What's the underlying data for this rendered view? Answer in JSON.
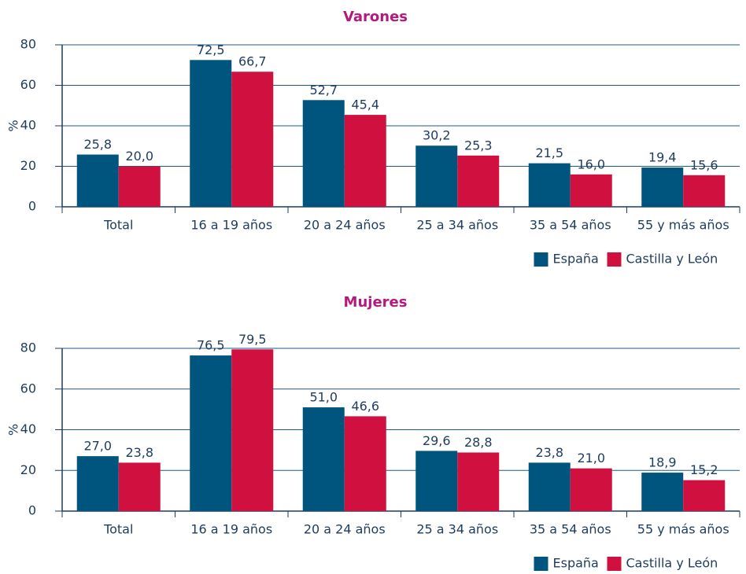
{
  "chart_data": [
    {
      "type": "bar",
      "title": "Varones",
      "ylabel": "%",
      "categories": [
        "Total",
        "16 a 19 años",
        "20 a 24 años",
        "25 a 34 años",
        "35 a 54 años",
        "55 y más años"
      ],
      "series": [
        {
          "name": "España",
          "color": "#00557f",
          "values": [
            25.8,
            72.5,
            52.7,
            30.2,
            21.5,
            19.4
          ],
          "value_labels": [
            "25,8",
            "72,5",
            "52,7",
            "30,2",
            "21,5",
            "19,4"
          ]
        },
        {
          "name": "Castilla y León",
          "color": "#d0103f",
          "values": [
            20.0,
            66.7,
            45.4,
            25.3,
            16.0,
            15.6
          ],
          "value_labels": [
            "20,0",
            "66,7",
            "45,4",
            "25,3",
            "16,0",
            "15,6"
          ]
        }
      ],
      "ylim": [
        0,
        80
      ],
      "yticks": [
        0,
        20,
        40,
        60,
        80
      ],
      "grid": true,
      "legend": "bottom-right"
    },
    {
      "type": "bar",
      "title": "Mujeres",
      "ylabel": "%",
      "categories": [
        "Total",
        "16 a 19 años",
        "20 a 24 años",
        "25 a 34 años",
        "35 a 54 años",
        "55 y más años"
      ],
      "series": [
        {
          "name": "España",
          "color": "#00557f",
          "values": [
            27.0,
            76.5,
            51.0,
            29.6,
            23.8,
            18.9
          ],
          "value_labels": [
            "27,0",
            "76,5",
            "51,0",
            "29,6",
            "23,8",
            "18,9"
          ]
        },
        {
          "name": "Castilla y León",
          "color": "#d0103f",
          "values": [
            23.8,
            79.5,
            46.6,
            28.8,
            21.0,
            15.2
          ],
          "value_labels": [
            "23,8",
            "79,5",
            "46,6",
            "28,8",
            "21,0",
            "15,2"
          ]
        }
      ],
      "ylim": [
        0,
        80
      ],
      "yticks": [
        0,
        20,
        40,
        60,
        80
      ],
      "grid": true,
      "legend": "bottom-right"
    }
  ]
}
